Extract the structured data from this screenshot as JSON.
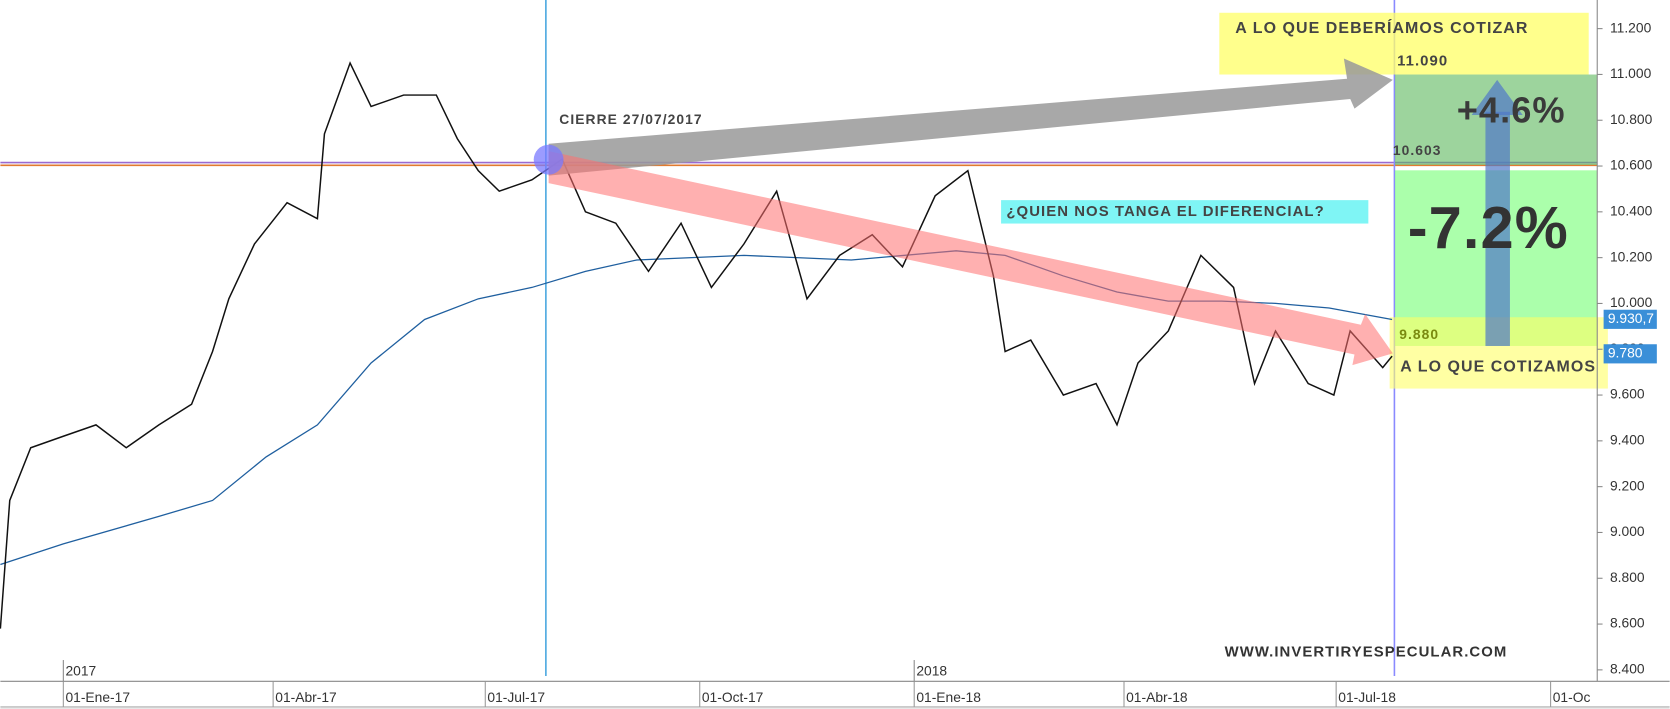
{
  "chart_data": {
    "type": "line",
    "x": [
      "2016-12-05",
      "2016-12-09",
      "2016-12-18",
      "2017-01-01",
      "2017-01-15",
      "2017-01-28",
      "2017-02-11",
      "2017-02-25",
      "2017-03-06",
      "2017-03-13",
      "2017-03-24",
      "2017-04-07",
      "2017-04-20",
      "2017-04-23",
      "2017-05-04",
      "2017-05-13",
      "2017-05-27",
      "2017-06-10",
      "2017-06-19",
      "2017-06-28",
      "2017-07-07",
      "2017-07-21",
      "2017-08-03",
      "2017-08-13",
      "2017-08-26",
      "2017-09-09",
      "2017-09-23",
      "2017-10-06",
      "2017-10-20",
      "2017-11-03",
      "2017-11-16",
      "2017-11-30",
      "2017-12-14",
      "2017-12-27",
      "2018-01-10",
      "2018-01-24",
      "2018-02-04",
      "2018-02-09",
      "2018-02-20",
      "2018-03-06",
      "2018-03-20",
      "2018-03-29",
      "2018-04-07",
      "2018-04-20",
      "2018-05-04",
      "2018-05-18",
      "2018-05-27",
      "2018-06-05",
      "2018-06-19",
      "2018-06-30",
      "2018-07-07",
      "2018-07-21",
      "2018-07-25"
    ],
    "series": [
      {
        "color": "#111111",
        "values": [
          8580,
          9140,
          9370,
          9420,
          9470,
          9370,
          9470,
          9560,
          9790,
          10020,
          10260,
          10440,
          10370,
          10740,
          11050,
          10860,
          10910,
          10910,
          10720,
          10580,
          10490,
          10540,
          10630,
          10400,
          10350,
          10140,
          10350,
          10070,
          10260,
          10490,
          10020,
          10210,
          10300,
          10160,
          10470,
          10580,
          10120,
          9790,
          9840,
          9600,
          9650,
          9470,
          9740,
          9880,
          10210,
          10070,
          9650,
          9880,
          9650,
          9600,
          9880,
          9720,
          9770
        ]
      }
    ],
    "moving_average": {
      "color": "#1f5f9f",
      "x": [
        "2016-12-05",
        "2017-01-01",
        "2017-02-11",
        "2017-03-06",
        "2017-03-29",
        "2017-04-20",
        "2017-05-13",
        "2017-06-05",
        "2017-06-28",
        "2017-07-21",
        "2017-08-13",
        "2017-09-04",
        "2017-10-20",
        "2017-12-05",
        "2018-01-19",
        "2018-02-09",
        "2018-03-06",
        "2018-03-29",
        "2018-04-20",
        "2018-05-13",
        "2018-06-05",
        "2018-06-28",
        "2018-07-25"
      ],
      "values": [
        8860,
        8950,
        9070,
        9140,
        9330,
        9470,
        9740,
        9930,
        10020,
        10070,
        10140,
        10190,
        10210,
        10190,
        10230,
        10210,
        10120,
        10050,
        10010,
        10010,
        10000,
        9980,
        9930
      ]
    },
    "xlim": [
      "2016-12-05",
      "2018-10-21"
    ],
    "xticks": [
      {
        "value": "2017-01-01",
        "label": "01-Ene-17"
      },
      {
        "value": "2017-04-01",
        "label": "01-Abr-17"
      },
      {
        "value": "2017-07-01",
        "label": "01-Jul-17"
      },
      {
        "value": "2017-10-01",
        "label": "01-Oct-17"
      },
      {
        "value": "2018-01-01",
        "label": "01-Ene-18"
      },
      {
        "value": "2018-04-01",
        "label": "01-Abr-18"
      },
      {
        "value": "2018-07-01",
        "label": "01-Jul-18"
      },
      {
        "value": "2018-10-01",
        "label": "01-Oc"
      }
    ],
    "year_ticks": [
      {
        "value": "2017-01-01",
        "label": "2017"
      },
      {
        "value": "2018-01-01",
        "label": "2018"
      }
    ],
    "ylim": [
      8350,
      11325
    ],
    "yticks": [
      {
        "value": 8400,
        "label": "8.400"
      },
      {
        "value": 8600,
        "label": "8.600"
      },
      {
        "value": 8800,
        "label": "8.800"
      },
      {
        "value": 9000,
        "label": "9.000"
      },
      {
        "value": 9200,
        "label": "9.200"
      },
      {
        "value": 9400,
        "label": "9.400"
      },
      {
        "value": 9600,
        "label": "9.600"
      },
      {
        "value": 9800,
        "label": "9.800"
      },
      {
        "value": 10000,
        "label": "10.000"
      },
      {
        "value": 10200,
        "label": "10.200"
      },
      {
        "value": 10400,
        "label": "10.400"
      },
      {
        "value": 10600,
        "label": "10.600"
      },
      {
        "value": 10800,
        "label": "10.800"
      },
      {
        "value": 11000,
        "label": "11.000"
      },
      {
        "value": 11200,
        "label": "11.200"
      }
    ],
    "price_tags": [
      {
        "value": 9930.7,
        "label": "9.930,7",
        "color": "#3a8fd8"
      },
      {
        "value": 9780,
        "label": "9.780",
        "color": "#3a8fd8"
      }
    ],
    "hlines": [
      {
        "value": 10603,
        "color": "#e07a30"
      },
      {
        "value": 10615,
        "color": "#9a6ad0"
      }
    ],
    "vlines": [
      {
        "value": "2017-07-27",
        "color": "#4aa8e0"
      },
      {
        "value": "2018-07-26",
        "color": "#8a8aff"
      }
    ],
    "grid": true,
    "annotations": [
      "A LO QUE DEBERÍAMOS COTIZAR",
      "11.090",
      "CIERRE 27/07/2017",
      "10.603",
      "¿QUIEN NOS TANGA EL DIFERENCIAL?",
      "+4.6%",
      "-7.2%",
      "9.880",
      "A LO QUE COTIZAMOS",
      "WWW.INVERTIRYESPECULAR.COM"
    ]
  }
}
